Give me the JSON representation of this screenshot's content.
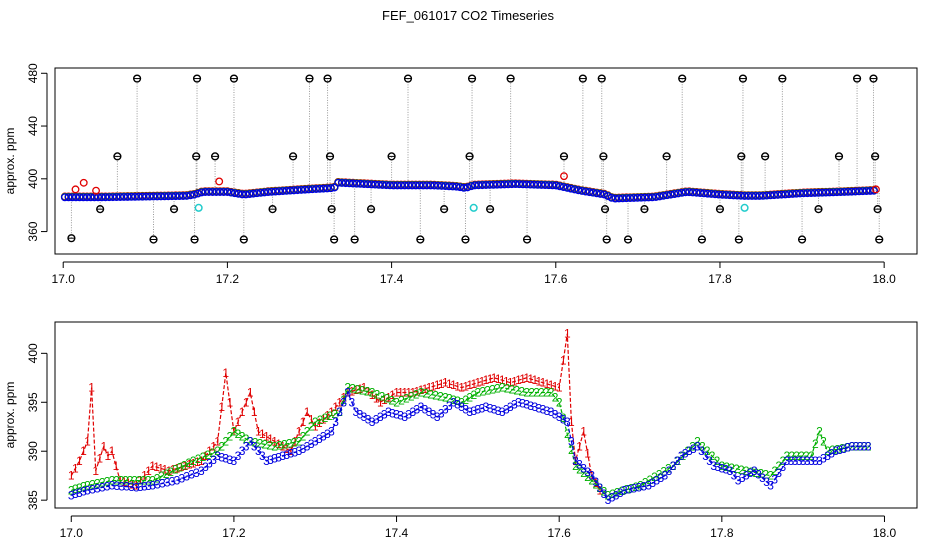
{
  "title": "FEF_061017  CO2 Timeseries",
  "colors": {
    "series1": "#e00000",
    "series2": "#00b000",
    "series3": "#0000e0",
    "outlier": "#000000",
    "cyan": "#22cccc",
    "trace": "#999999"
  },
  "chart_data": [
    {
      "type": "scatter",
      "title": "FEF_061017  CO2 Timeseries",
      "xlabel": "",
      "ylabel": "approx. ppm",
      "xlim": [
        16.99,
        18.04
      ],
      "ylim": [
        343,
        484
      ],
      "xticks": [
        "17.0",
        "17.2",
        "17.4",
        "17.6",
        "17.8",
        "18.0"
      ],
      "yticks": [
        "360",
        "400",
        "440",
        "480"
      ],
      "grid": false,
      "legend": "none",
      "baseline_trend": [
        {
          "x": 17.0,
          "y": 386
        },
        {
          "x": 17.05,
          "y": 386
        },
        {
          "x": 17.1,
          "y": 386.5
        },
        {
          "x": 17.15,
          "y": 387
        },
        {
          "x": 17.16,
          "y": 388
        },
        {
          "x": 17.17,
          "y": 390
        },
        {
          "x": 17.2,
          "y": 390
        },
        {
          "x": 17.22,
          "y": 388
        },
        {
          "x": 17.25,
          "y": 390
        },
        {
          "x": 17.3,
          "y": 392
        },
        {
          "x": 17.33,
          "y": 393
        },
        {
          "x": 17.335,
          "y": 397
        },
        {
          "x": 17.4,
          "y": 395
        },
        {
          "x": 17.45,
          "y": 395
        },
        {
          "x": 17.48,
          "y": 394
        },
        {
          "x": 17.49,
          "y": 393
        },
        {
          "x": 17.5,
          "y": 395
        },
        {
          "x": 17.55,
          "y": 396
        },
        {
          "x": 17.6,
          "y": 395
        },
        {
          "x": 17.63,
          "y": 391
        },
        {
          "x": 17.66,
          "y": 388
        },
        {
          "x": 17.67,
          "y": 385
        },
        {
          "x": 17.72,
          "y": 386
        },
        {
          "x": 17.76,
          "y": 390
        },
        {
          "x": 17.8,
          "y": 388
        },
        {
          "x": 17.83,
          "y": 387
        },
        {
          "x": 17.85,
          "y": 387
        },
        {
          "x": 17.9,
          "y": 389
        },
        {
          "x": 17.95,
          "y": 390
        },
        {
          "x": 17.99,
          "y": 391
        }
      ],
      "outliers": [
        {
          "x": 17.01,
          "y": 355
        },
        {
          "x": 17.045,
          "y": 377
        },
        {
          "x": 17.09,
          "y": 476
        },
        {
          "x": 17.066,
          "y": 417
        },
        {
          "x": 17.11,
          "y": 354
        },
        {
          "x": 17.135,
          "y": 377
        },
        {
          "x": 17.16,
          "y": 354
        },
        {
          "x": 17.162,
          "y": 417
        },
        {
          "x": 17.163,
          "y": 476
        },
        {
          "x": 17.185,
          "y": 417
        },
        {
          "x": 17.208,
          "y": 476
        },
        {
          "x": 17.22,
          "y": 354
        },
        {
          "x": 17.255,
          "y": 377
        },
        {
          "x": 17.28,
          "y": 417
        },
        {
          "x": 17.3,
          "y": 476
        },
        {
          "x": 17.322,
          "y": 476
        },
        {
          "x": 17.325,
          "y": 417
        },
        {
          "x": 17.327,
          "y": 377
        },
        {
          "x": 17.33,
          "y": 354
        },
        {
          "x": 17.355,
          "y": 354
        },
        {
          "x": 17.375,
          "y": 377
        },
        {
          "x": 17.4,
          "y": 417
        },
        {
          "x": 17.42,
          "y": 476
        },
        {
          "x": 17.435,
          "y": 354
        },
        {
          "x": 17.464,
          "y": 377
        },
        {
          "x": 17.495,
          "y": 417
        },
        {
          "x": 17.498,
          "y": 476
        },
        {
          "x": 17.49,
          "y": 354
        },
        {
          "x": 17.52,
          "y": 377
        },
        {
          "x": 17.545,
          "y": 476
        },
        {
          "x": 17.565,
          "y": 354
        },
        {
          "x": 17.61,
          "y": 417
        },
        {
          "x": 17.633,
          "y": 476
        },
        {
          "x": 17.656,
          "y": 476
        },
        {
          "x": 17.658,
          "y": 417
        },
        {
          "x": 17.66,
          "y": 377
        },
        {
          "x": 17.662,
          "y": 354
        },
        {
          "x": 17.688,
          "y": 354
        },
        {
          "x": 17.708,
          "y": 377
        },
        {
          "x": 17.735,
          "y": 417
        },
        {
          "x": 17.754,
          "y": 476
        },
        {
          "x": 17.778,
          "y": 354
        },
        {
          "x": 17.8,
          "y": 377
        },
        {
          "x": 17.823,
          "y": 354
        },
        {
          "x": 17.826,
          "y": 417
        },
        {
          "x": 17.828,
          "y": 476
        },
        {
          "x": 17.855,
          "y": 417
        },
        {
          "x": 17.876,
          "y": 476
        },
        {
          "x": 17.9,
          "y": 354
        },
        {
          "x": 17.92,
          "y": 377
        },
        {
          "x": 17.945,
          "y": 417
        },
        {
          "x": 17.967,
          "y": 476
        },
        {
          "x": 17.987,
          "y": 476
        },
        {
          "x": 17.989,
          "y": 417
        },
        {
          "x": 17.992,
          "y": 377
        },
        {
          "x": 17.994,
          "y": 354
        }
      ],
      "cyan_points": [
        {
          "x": 17.165,
          "y": 378
        },
        {
          "x": 17.5,
          "y": 378
        },
        {
          "x": 17.83,
          "y": 378
        }
      ],
      "red_highs": [
        {
          "x": 17.015,
          "y": 392
        },
        {
          "x": 17.025,
          "y": 397
        },
        {
          "x": 17.04,
          "y": 391
        },
        {
          "x": 17.19,
          "y": 398
        },
        {
          "x": 17.61,
          "y": 402
        },
        {
          "x": 17.99,
          "y": 392
        }
      ]
    },
    {
      "type": "line",
      "title": "",
      "xlabel": "",
      "ylabel": "approx. ppm",
      "xlim": [
        16.98,
        18.04
      ],
      "ylim": [
        384.2,
        403.2
      ],
      "xticks": [
        "17.0",
        "17.2",
        "17.4",
        "17.6",
        "17.8",
        "18.0"
      ],
      "yticks": [
        "385",
        "390",
        "395",
        "400"
      ],
      "grid": false,
      "legend": "none",
      "series": [
        {
          "marker": "1",
          "color": "#e00000",
          "points": [
            {
              "x": 17.0,
              "y": 387.5
            },
            {
              "x": 17.01,
              "y": 389
            },
            {
              "x": 17.02,
              "y": 391
            },
            {
              "x": 17.025,
              "y": 396.5
            },
            {
              "x": 17.03,
              "y": 388
            },
            {
              "x": 17.04,
              "y": 390.5
            },
            {
              "x": 17.045,
              "y": 389.5
            },
            {
              "x": 17.05,
              "y": 390
            },
            {
              "x": 17.06,
              "y": 387
            },
            {
              "x": 17.08,
              "y": 386.5
            },
            {
              "x": 17.1,
              "y": 388.5
            },
            {
              "x": 17.12,
              "y": 388
            },
            {
              "x": 17.14,
              "y": 388.5
            },
            {
              "x": 17.16,
              "y": 389
            },
            {
              "x": 17.18,
              "y": 391
            },
            {
              "x": 17.19,
              "y": 398
            },
            {
              "x": 17.2,
              "y": 392
            },
            {
              "x": 17.22,
              "y": 396
            },
            {
              "x": 17.23,
              "y": 392
            },
            {
              "x": 17.25,
              "y": 391
            },
            {
              "x": 17.27,
              "y": 390
            },
            {
              "x": 17.29,
              "y": 394
            },
            {
              "x": 17.3,
              "y": 392.5
            },
            {
              "x": 17.32,
              "y": 394
            },
            {
              "x": 17.34,
              "y": 396
            },
            {
              "x": 17.36,
              "y": 396.5
            },
            {
              "x": 17.38,
              "y": 395
            },
            {
              "x": 17.4,
              "y": 396
            },
            {
              "x": 17.42,
              "y": 396
            },
            {
              "x": 17.44,
              "y": 396.5
            },
            {
              "x": 17.46,
              "y": 397
            },
            {
              "x": 17.48,
              "y": 396.5
            },
            {
              "x": 17.5,
              "y": 397
            },
            {
              "x": 17.52,
              "y": 397.5
            },
            {
              "x": 17.54,
              "y": 397
            },
            {
              "x": 17.56,
              "y": 397.5
            },
            {
              "x": 17.58,
              "y": 397
            },
            {
              "x": 17.6,
              "y": 396.5
            },
            {
              "x": 17.61,
              "y": 402
            },
            {
              "x": 17.615,
              "y": 393
            },
            {
              "x": 17.62,
              "y": 389
            },
            {
              "x": 17.63,
              "y": 392
            },
            {
              "x": 17.64,
              "y": 387.5
            },
            {
              "x": 17.65,
              "y": 386
            }
          ]
        },
        {
          "marker": "2",
          "color": "#00b000",
          "points": [
            {
              "x": 17.0,
              "y": 386
            },
            {
              "x": 17.02,
              "y": 386.5
            },
            {
              "x": 17.05,
              "y": 387
            },
            {
              "x": 17.1,
              "y": 387
            },
            {
              "x": 17.15,
              "y": 389
            },
            {
              "x": 17.18,
              "y": 390
            },
            {
              "x": 17.2,
              "y": 392
            },
            {
              "x": 17.22,
              "y": 391
            },
            {
              "x": 17.25,
              "y": 390.5
            },
            {
              "x": 17.28,
              "y": 391
            },
            {
              "x": 17.3,
              "y": 393
            },
            {
              "x": 17.33,
              "y": 394
            },
            {
              "x": 17.34,
              "y": 396.5
            },
            {
              "x": 17.37,
              "y": 396
            },
            {
              "x": 17.4,
              "y": 395
            },
            {
              "x": 17.43,
              "y": 396
            },
            {
              "x": 17.46,
              "y": 395.5
            },
            {
              "x": 17.48,
              "y": 395
            },
            {
              "x": 17.5,
              "y": 396
            },
            {
              "x": 17.53,
              "y": 396.5
            },
            {
              "x": 17.56,
              "y": 396
            },
            {
              "x": 17.59,
              "y": 396
            },
            {
              "x": 17.6,
              "y": 395
            },
            {
              "x": 17.62,
              "y": 388.5
            },
            {
              "x": 17.64,
              "y": 387
            },
            {
              "x": 17.66,
              "y": 385.5
            },
            {
              "x": 17.7,
              "y": 386.5
            },
            {
              "x": 17.74,
              "y": 388.5
            },
            {
              "x": 17.77,
              "y": 391
            },
            {
              "x": 17.8,
              "y": 388.5
            },
            {
              "x": 17.83,
              "y": 388
            },
            {
              "x": 17.86,
              "y": 387.5
            },
            {
              "x": 17.88,
              "y": 389.5
            },
            {
              "x": 17.91,
              "y": 389.5
            },
            {
              "x": 17.92,
              "y": 392
            },
            {
              "x": 17.93,
              "y": 390
            },
            {
              "x": 17.96,
              "y": 390.5
            },
            {
              "x": 17.98,
              "y": 390.5
            }
          ]
        },
        {
          "marker": "3",
          "color": "#0000e0",
          "points": [
            {
              "x": 17.0,
              "y": 385.5
            },
            {
              "x": 17.02,
              "y": 386
            },
            {
              "x": 17.05,
              "y": 386.5
            },
            {
              "x": 17.08,
              "y": 386.3
            },
            {
              "x": 17.1,
              "y": 386.5
            },
            {
              "x": 17.13,
              "y": 387
            },
            {
              "x": 17.16,
              "y": 388
            },
            {
              "x": 17.18,
              "y": 389.5
            },
            {
              "x": 17.2,
              "y": 389
            },
            {
              "x": 17.22,
              "y": 391
            },
            {
              "x": 17.24,
              "y": 389
            },
            {
              "x": 17.26,
              "y": 389.5
            },
            {
              "x": 17.28,
              "y": 390
            },
            {
              "x": 17.3,
              "y": 391
            },
            {
              "x": 17.32,
              "y": 392
            },
            {
              "x": 17.34,
              "y": 396
            },
            {
              "x": 17.35,
              "y": 394
            },
            {
              "x": 17.37,
              "y": 393
            },
            {
              "x": 17.39,
              "y": 394
            },
            {
              "x": 17.41,
              "y": 393.5
            },
            {
              "x": 17.43,
              "y": 394.5
            },
            {
              "x": 17.45,
              "y": 393.5
            },
            {
              "x": 17.47,
              "y": 395
            },
            {
              "x": 17.49,
              "y": 394
            },
            {
              "x": 17.51,
              "y": 394.5
            },
            {
              "x": 17.53,
              "y": 394
            },
            {
              "x": 17.55,
              "y": 395
            },
            {
              "x": 17.57,
              "y": 394.5
            },
            {
              "x": 17.59,
              "y": 394
            },
            {
              "x": 17.61,
              "y": 393
            },
            {
              "x": 17.62,
              "y": 389
            },
            {
              "x": 17.64,
              "y": 387.5
            },
            {
              "x": 17.66,
              "y": 385
            },
            {
              "x": 17.68,
              "y": 386
            },
            {
              "x": 17.71,
              "y": 386.5
            },
            {
              "x": 17.73,
              "y": 387.5
            },
            {
              "x": 17.75,
              "y": 389.5
            },
            {
              "x": 17.77,
              "y": 390.5
            },
            {
              "x": 17.79,
              "y": 388.5
            },
            {
              "x": 17.81,
              "y": 388
            },
            {
              "x": 17.82,
              "y": 387
            },
            {
              "x": 17.84,
              "y": 388
            },
            {
              "x": 17.86,
              "y": 386.5
            },
            {
              "x": 17.88,
              "y": 389
            },
            {
              "x": 17.9,
              "y": 389
            },
            {
              "x": 17.92,
              "y": 389
            },
            {
              "x": 17.94,
              "y": 390
            },
            {
              "x": 17.96,
              "y": 390.5
            },
            {
              "x": 17.98,
              "y": 390.5
            }
          ]
        }
      ]
    }
  ]
}
